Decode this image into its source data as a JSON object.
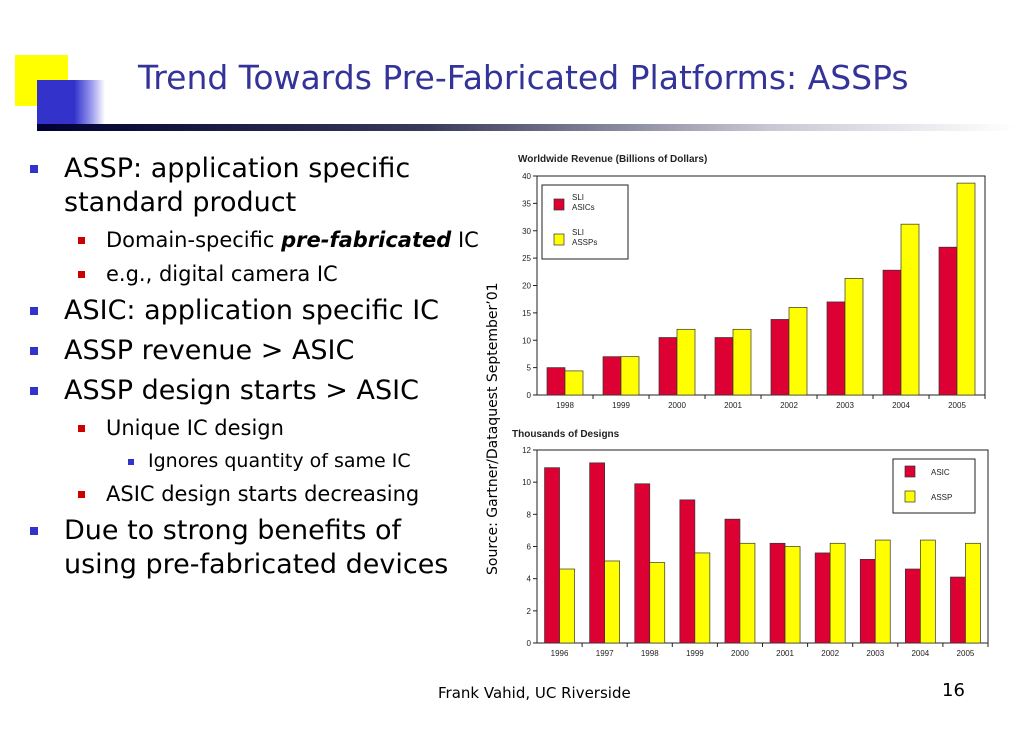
{
  "slide": {
    "title": "Trend Towards Pre-Fabricated Platforms: ASSPs",
    "source": "Source: Gartner/Dataquest September’01",
    "footer": "Frank Vahid, UC Riverside",
    "page_number": "16"
  },
  "bullets": {
    "b1": "ASSP: application specific standard product",
    "b1_s1_pre": "Domain-specific ",
    "b1_s1_emph": "pre-fabricated",
    "b1_s1_post": " IC",
    "b1_s2": "e.g., digital camera IC",
    "b2": "ASIC: application specific IC",
    "b3": "ASSP revenue > ASIC",
    "b4": "ASSP design starts > ASIC",
    "b4_s1": "Unique IC design",
    "b4_s1_s1": "Ignores quantity of same IC",
    "b4_s2": "ASIC design starts decreasing",
    "b5": "Due to strong benefits of using pre-fabricated devices"
  },
  "colors": {
    "title": "#333399",
    "asic": "#dd0033",
    "assp": "#ffff00"
  },
  "chart_data": [
    {
      "type": "bar",
      "title": "Worldwide Revenue (Billions of Dollars)",
      "categories": [
        "1998",
        "1999",
        "2000",
        "2001",
        "2002",
        "2003",
        "2004",
        "2005"
      ],
      "series": [
        {
          "name": "SLI ASICs",
          "values": [
            5,
            7,
            10.5,
            10.5,
            13.8,
            17,
            22.8,
            27
          ],
          "color": "#dd0033"
        },
        {
          "name": "SLI ASSPs",
          "values": [
            4.4,
            7,
            12,
            12,
            16,
            21.3,
            31.2,
            38.7
          ],
          "color": "#ffff00"
        }
      ],
      "ylim": [
        0,
        40
      ],
      "yticks": [
        0,
        5,
        10,
        15,
        20,
        25,
        30,
        35,
        40
      ],
      "legend": "top-left",
      "grid": false
    },
    {
      "type": "bar",
      "title": "Thousands of Designs",
      "categories": [
        "1996",
        "1997",
        "1998",
        "1999",
        "2000",
        "2001",
        "2002",
        "2003",
        "2004",
        "2005"
      ],
      "series": [
        {
          "name": "ASIC",
          "values": [
            10.9,
            11.2,
            9.9,
            8.9,
            7.7,
            6.2,
            5.6,
            5.2,
            4.6,
            4.1
          ],
          "color": "#dd0033"
        },
        {
          "name": "ASSP",
          "values": [
            4.6,
            5.1,
            5.0,
            5.6,
            6.2,
            6.0,
            6.2,
            6.4,
            6.4,
            6.2
          ],
          "color": "#ffff00"
        }
      ],
      "ylim": [
        0,
        12
      ],
      "yticks": [
        0,
        2,
        4,
        6,
        8,
        10,
        12
      ],
      "legend": "top-right",
      "grid": false
    }
  ]
}
